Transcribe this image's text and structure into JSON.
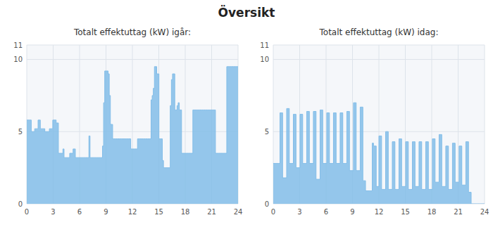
{
  "title": "Översikt",
  "chart_data": [
    {
      "type": "area",
      "title": "Totalt effektuttag (kW) igår:",
      "line_style": "steps",
      "color": "#82bde8",
      "xlim": [
        0,
        24
      ],
      "xticks": [
        0,
        3,
        6,
        9,
        12,
        15,
        18,
        21,
        24
      ],
      "ylim": [
        0,
        11
      ],
      "yticks": [
        0,
        5,
        10,
        11
      ],
      "grid": true,
      "values": [
        5.8,
        5.8,
        5.8,
        5.8,
        5.0,
        5.0,
        5.0,
        5.2,
        5.2,
        5.2,
        5.8,
        5.8,
        5.2,
        5.2,
        5.2,
        5.2,
        5.0,
        5.0,
        5.0,
        5.0,
        5.2,
        5.2,
        5.2,
        5.8,
        5.8,
        5.8,
        5.6,
        5.6,
        3.5,
        3.5,
        3.5,
        3.5,
        3.8,
        3.2,
        3.2,
        3.2,
        3.2,
        3.2,
        3.5,
        3.5,
        3.5,
        3.8,
        3.8,
        3.2,
        3.2,
        3.2,
        3.2,
        3.2,
        3.2,
        3.2,
        3.2,
        3.2,
        3.2,
        3.2,
        3.2,
        4.7,
        3.2,
        3.2,
        3.2,
        3.2,
        3.2,
        3.2,
        3.2,
        3.2,
        3.2,
        3.2,
        3.2,
        4.0,
        7.0,
        9.2,
        9.2,
        9.2,
        9.0,
        7.5,
        5.5,
        5.5,
        4.5,
        4.5,
        4.5,
        4.5,
        4.5,
        4.5,
        4.5,
        4.5,
        4.5,
        4.5,
        4.5,
        4.5,
        4.5,
        4.5,
        4.5,
        4.5,
        3.8,
        3.8,
        3.8,
        3.8,
        3.8,
        3.8,
        4.5,
        4.5,
        4.5,
        4.5,
        4.5,
        4.5,
        4.5,
        4.5,
        4.5,
        4.5,
        4.5,
        4.5,
        7.2,
        7.5,
        8.0,
        9.5,
        9.5,
        9.0,
        9.0,
        4.5,
        4.5,
        4.5,
        3.0,
        2.5,
        2.5,
        2.5,
        2.5,
        2.5,
        2.5,
        6.8,
        8.6,
        9.0,
        9.0,
        6.5,
        6.5,
        6.8,
        7.0,
        6.5,
        6.5,
        3.5,
        3.5,
        3.5,
        3.5,
        3.5,
        3.5,
        3.5,
        3.5,
        3.5,
        3.5,
        6.5,
        6.5,
        6.5,
        6.5,
        6.5,
        6.5,
        6.5,
        6.5,
        6.5,
        6.5,
        6.5,
        6.5,
        6.5,
        6.5,
        6.5,
        6.5,
        6.5,
        6.5,
        6.5,
        6.5,
        3.5,
        3.5,
        3.5,
        3.5,
        3.5,
        3.5,
        3.5,
        3.5,
        3.5,
        3.5,
        9.5,
        9.5,
        9.5,
        9.5,
        9.5,
        9.5,
        9.5,
        9.5,
        9.5,
        9.5
      ]
    },
    {
      "type": "area",
      "title": "Totalt effektuttag (kW) idag:",
      "line_style": "steps",
      "color": "#82bde8",
      "xlim": [
        0,
        24
      ],
      "xticks": [
        0,
        3,
        6,
        9,
        12,
        15,
        18,
        21,
        24
      ],
      "ylim": [
        0,
        11
      ],
      "yticks": [
        0,
        5,
        10,
        11
      ],
      "grid": true,
      "values": [
        2.8,
        2.8,
        2.8,
        2.8,
        2.8,
        6.3,
        6.3,
        1.8,
        1.8,
        1.8,
        6.6,
        6.6,
        2.8,
        2.8,
        2.8,
        6.2,
        6.2,
        2.5,
        2.5,
        2.5,
        6.2,
        6.2,
        2.8,
        2.8,
        2.8,
        6.4,
        6.4,
        2.8,
        2.8,
        2.8,
        6.4,
        6.4,
        1.7,
        1.7,
        1.7,
        6.5,
        6.5,
        2.8,
        2.8,
        2.8,
        6.3,
        6.3,
        2.8,
        2.8,
        2.8,
        6.3,
        6.3,
        2.8,
        2.8,
        2.8,
        6.3,
        6.3,
        2.8,
        2.8,
        2.8,
        6.4,
        6.4,
        2.3,
        2.3,
        2.3,
        7.0,
        7.0,
        2.3,
        2.3,
        2.3,
        6.7,
        6.7,
        1.6,
        1.6,
        0.9,
        0.9,
        0.9,
        0.9,
        0.9,
        4.2,
        4.0,
        4.0,
        1.2,
        1.2,
        4.7,
        4.7,
        1.0,
        1.0,
        1.0,
        5.0,
        5.0,
        1.0,
        1.0,
        1.0,
        4.3,
        4.3,
        1.0,
        1.0,
        1.0,
        4.5,
        4.5,
        1.2,
        1.2,
        1.2,
        4.3,
        4.3,
        1.0,
        1.0,
        1.0,
        4.3,
        4.3,
        1.2,
        1.2,
        1.2,
        4.3,
        4.3,
        1.0,
        1.0,
        1.0,
        4.3,
        4.3,
        1.0,
        1.0,
        1.0,
        4.5,
        4.5,
        1.5,
        1.5,
        1.5,
        4.8,
        4.8,
        1.2,
        1.2,
        1.2,
        4.0,
        4.0,
        1.0,
        1.0,
        1.0,
        4.2,
        4.2,
        1.5,
        1.5,
        1.5,
        4.0,
        4.0,
        1.3,
        1.3,
        1.3,
        4.3,
        4.3,
        0.8,
        0.8,
        0.0,
        0.0,
        0.0,
        0.0,
        0.0,
        0.0,
        0.0,
        0.0,
        0.0,
        0.0
      ]
    }
  ]
}
